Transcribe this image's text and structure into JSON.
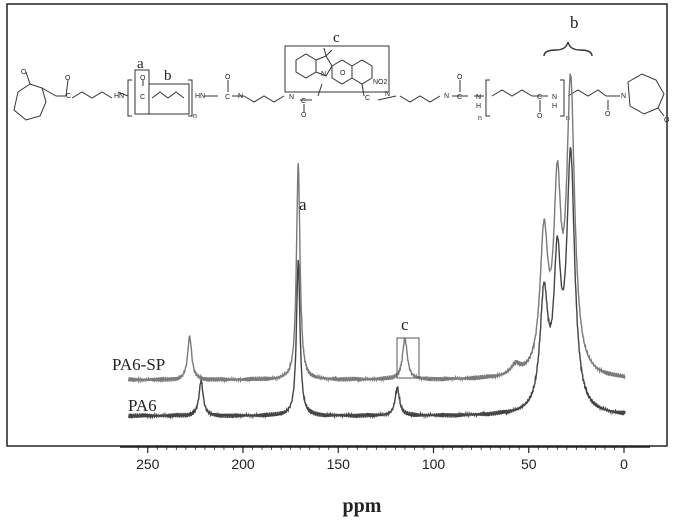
{
  "chart_data": {
    "type": "line",
    "title": "",
    "xlabel": "ppm",
    "ylabel": "",
    "xlim": [
      260,
      0
    ],
    "x_reversed": true,
    "x_ticks": [
      250,
      200,
      150,
      100,
      50,
      0
    ],
    "grid": false,
    "series": [
      {
        "name": "PA6-SP",
        "color": "#7a7a7a",
        "baseline": 0.18,
        "peaks": [
          {
            "ppm": 228,
            "height": 0.17,
            "width": 1.3
          },
          {
            "ppm": 171,
            "height": 0.85,
            "width": 1.1
          },
          {
            "ppm": 115,
            "height": 0.16,
            "width": 1.5
          },
          {
            "ppm": 42,
            "height": 0.53,
            "width": 2.5
          },
          {
            "ppm": 35,
            "height": 0.67,
            "width": 2.2
          },
          {
            "ppm": 28,
            "height": 1.12,
            "width": 2.5
          },
          {
            "ppm": 57,
            "height": 0.04,
            "width": 3.0
          }
        ]
      },
      {
        "name": "PA6",
        "color": "#444444",
        "baseline": 0.0,
        "peaks": [
          {
            "ppm": 222,
            "height": 0.14,
            "width": 1.3
          },
          {
            "ppm": 171,
            "height": 0.62,
            "width": 1.1
          },
          {
            "ppm": 119,
            "height": 0.11,
            "width": 1.4
          },
          {
            "ppm": 42,
            "height": 0.45,
            "width": 2.5
          },
          {
            "ppm": 35,
            "height": 0.55,
            "width": 2.2
          },
          {
            "ppm": 28,
            "height": 1.0,
            "width": 2.5
          }
        ]
      }
    ],
    "annotations": [
      {
        "text": "a",
        "ppm": 171
      },
      {
        "text": "b",
        "ppm": 28
      },
      {
        "text": "c",
        "ppm": 115
      }
    ]
  },
  "structure": {
    "labels": [
      "a",
      "b",
      "c"
    ],
    "atoms": [
      "O",
      "C",
      "H",
      "N",
      "n",
      "NO2"
    ]
  }
}
